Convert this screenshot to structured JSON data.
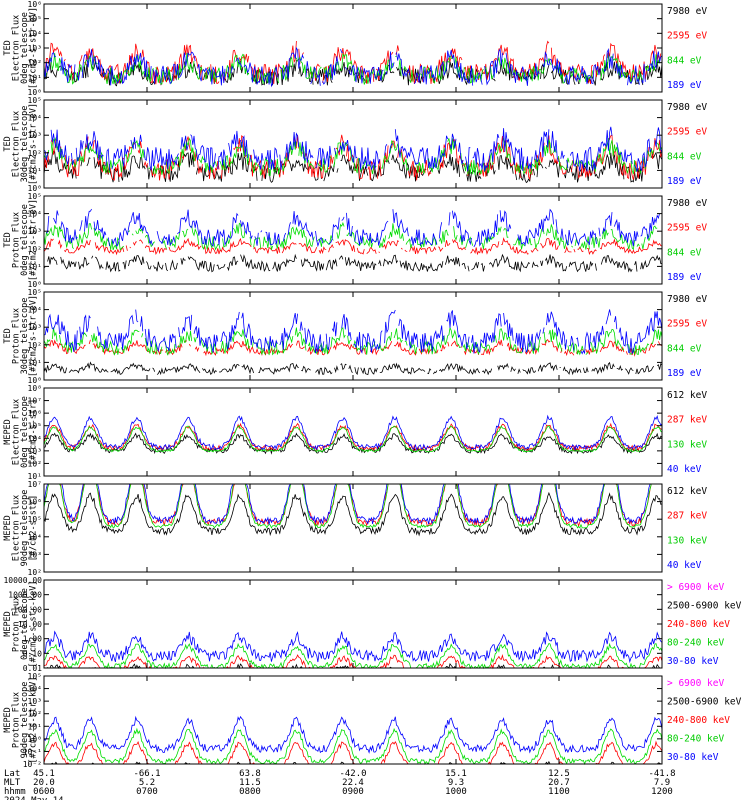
{
  "figure": {
    "date_label": "2024 May 14",
    "row_labels": [
      "Lat",
      "MLT",
      "hhmm"
    ],
    "time_ticks": [
      {
        "lat": "45.1",
        "mlt": "20.0",
        "hhmm": "0600"
      },
      {
        "lat": "-66.1",
        "mlt": "5.2",
        "hhmm": "0700"
      },
      {
        "lat": "63.8",
        "mlt": "11.5",
        "hhmm": "0800"
      },
      {
        "lat": "-42.0",
        "mlt": "22.4",
        "hhmm": "0900"
      },
      {
        "lat": "15.1",
        "mlt": "9.3",
        "hhmm": "1000"
      },
      {
        "lat": "12.5",
        "mlt": "20.7",
        "hhmm": "1100"
      },
      {
        "lat": "-41.8",
        "mlt": "7.9",
        "hhmm": "1200"
      }
    ]
  },
  "chart_data": [
    {
      "type": "line",
      "ylabel": [
        "TED",
        "Electron Flux",
        "0deg telescope",
        "[#/cm2-s-str-eV]"
      ],
      "ylog": true,
      "ylim": [
        1,
        1000000
      ],
      "yticks": [
        {
          "v": 1,
          "t": "10⁰"
        },
        {
          "v": 10,
          "t": "10¹"
        },
        {
          "v": 100,
          "t": "10²"
        },
        {
          "v": 1000,
          "t": "10³"
        },
        {
          "v": 10000,
          "t": "10⁴"
        },
        {
          "v": 100000,
          "t": "10⁵"
        },
        {
          "v": 1000000,
          "t": "10⁶"
        }
      ],
      "series": [
        {
          "name": "7980 eV",
          "color": "#000000",
          "level": 1.0,
          "spread": 0.6,
          "peak": 0.6,
          "seed": 11
        },
        {
          "name": "2595 eV",
          "color": "#ff0000",
          "level": 1.2,
          "spread": 0.7,
          "peak": 1.6,
          "seed": 12
        },
        {
          "name": "844 eV",
          "color": "#00dd00",
          "level": 1.1,
          "spread": 0.6,
          "peak": 1.0,
          "seed": 13
        },
        {
          "name": "189 eV",
          "color": "#0000ff",
          "level": 1.1,
          "spread": 0.7,
          "peak": 1.2,
          "seed": 14
        }
      ]
    },
    {
      "type": "line",
      "ylabel": [
        "TED",
        "Electron Flux",
        "30deg telescope",
        "[#/cm2-s-str-eV]"
      ],
      "ylog": true,
      "ylim": [
        1,
        100000
      ],
      "yticks": [
        {
          "v": 1,
          "t": "10⁰"
        },
        {
          "v": 10,
          "t": "10¹"
        },
        {
          "v": 100,
          "t": "10²"
        },
        {
          "v": 1000,
          "t": "10³"
        },
        {
          "v": 10000,
          "t": "10⁴"
        },
        {
          "v": 100000,
          "t": "10⁵"
        }
      ],
      "series": [
        {
          "name": "7980 eV",
          "color": "#000000",
          "level": 0.8,
          "spread": 0.5,
          "peak": 0.8,
          "seed": 21
        },
        {
          "name": "2595 eV",
          "color": "#ff0000",
          "level": 1.0,
          "spread": 0.6,
          "peak": 1.5,
          "seed": 22
        },
        {
          "name": "844 eV",
          "color": "#00dd00",
          "level": 1.2,
          "spread": 0.5,
          "peak": 1.2,
          "seed": 23
        },
        {
          "name": "189 eV",
          "color": "#0000ff",
          "level": 1.6,
          "spread": 0.7,
          "peak": 1.2,
          "seed": 24
        }
      ]
    },
    {
      "type": "line",
      "ylabel": [
        "TED",
        "Proton Flux",
        "0deg telescope",
        "[#/cm2-s-str-eV]"
      ],
      "ylog": true,
      "ylim": [
        1,
        100000
      ],
      "yticks": [
        {
          "v": 1,
          "t": "10⁰"
        },
        {
          "v": 10,
          "t": "10¹"
        },
        {
          "v": 100,
          "t": "10²"
        },
        {
          "v": 1000,
          "t": "10³"
        },
        {
          "v": 10000,
          "t": "10⁴"
        },
        {
          "v": 100000,
          "t": "10⁵"
        }
      ],
      "series": [
        {
          "name": "7980 eV",
          "color": "#000000",
          "level": 1.0,
          "spread": 0.3,
          "peak": 0.4,
          "seed": 31
        },
        {
          "name": "2595 eV",
          "color": "#ff0000",
          "level": 1.9,
          "spread": 0.2,
          "peak": 0.5,
          "seed": 32
        },
        {
          "name": "844 eV",
          "color": "#00dd00",
          "level": 2.3,
          "spread": 0.4,
          "peak": 0.8,
          "seed": 33
        },
        {
          "name": "189 eV",
          "color": "#0000ff",
          "level": 2.6,
          "spread": 0.5,
          "peak": 1.2,
          "seed": 34
        }
      ]
    },
    {
      "type": "line",
      "ylabel": [
        "TED",
        "Proton Flux",
        "30deg telescope",
        "[#/cm2-s-str-eV]"
      ],
      "ylog": true,
      "ylim": [
        1,
        100000
      ],
      "yticks": [
        {
          "v": 1,
          "t": "10⁰"
        },
        {
          "v": 10,
          "t": "10¹"
        },
        {
          "v": 100,
          "t": "10²"
        },
        {
          "v": 1000,
          "t": "10³"
        },
        {
          "v": 10000,
          "t": "10⁴"
        },
        {
          "v": 100000,
          "t": "10⁵"
        }
      ],
      "series": [
        {
          "name": "7980 eV",
          "color": "#000000",
          "level": 0.5,
          "spread": 0.2,
          "peak": 0.3,
          "seed": 41
        },
        {
          "name": "2595 eV",
          "color": "#ff0000",
          "level": 1.6,
          "spread": 0.2,
          "peak": 0.5,
          "seed": 42
        },
        {
          "name": "844 eV",
          "color": "#00dd00",
          "level": 1.8,
          "spread": 0.4,
          "peak": 0.8,
          "seed": 43
        },
        {
          "name": "189 eV",
          "color": "#0000ff",
          "level": 2.1,
          "spread": 0.6,
          "peak": 1.4,
          "seed": 44
        }
      ]
    },
    {
      "type": "line",
      "ylabel": [
        "MEPED",
        "Electron Flux",
        "0deg telescope",
        "[#/cm2-s-str]"
      ],
      "ylog": true,
      "ylim": [
        10,
        100000000
      ],
      "yticks": [
        {
          "v": 10,
          "t": "10¹"
        },
        {
          "v": 100,
          "t": "10²"
        },
        {
          "v": 1000,
          "t": "10³"
        },
        {
          "v": 10000,
          "t": "10⁴"
        },
        {
          "v": 100000,
          "t": "10⁵"
        },
        {
          "v": 1000000,
          "t": "10⁶"
        },
        {
          "v": 10000000,
          "t": "10⁷"
        },
        {
          "v": 100000000,
          "t": "10⁸"
        }
      ],
      "series": [
        {
          "name": "612 keV",
          "color": "#000000",
          "level": 2.0,
          "spread": 0.2,
          "peak": 1.2,
          "seed": 51
        },
        {
          "name": "287 keV",
          "color": "#ff0000",
          "level": 2.2,
          "spread": 0.2,
          "peak": 1.8,
          "seed": 52
        },
        {
          "name": "130 keV",
          "color": "#00dd00",
          "level": 2.0,
          "spread": 0.1,
          "peak": 1.9,
          "seed": 53
        },
        {
          "name": "40 keV",
          "color": "#0000ff",
          "level": 2.3,
          "spread": 0.2,
          "peak": 2.3,
          "seed": 54
        }
      ]
    },
    {
      "type": "line",
      "ylabel": [
        "MEPED",
        "Electron Flux",
        "90deg telescope",
        "[#/cm2-s-str]"
      ],
      "ylog": true,
      "ylim": [
        100,
        10000000
      ],
      "yticks": [
        {
          "v": 100,
          "t": "10²"
        },
        {
          "v": 1000,
          "t": "10³"
        },
        {
          "v": 10000,
          "t": "10⁴"
        },
        {
          "v": 100000,
          "t": "10⁵"
        },
        {
          "v": 1000000,
          "t": "10⁶"
        },
        {
          "v": 10000000,
          "t": "10⁷"
        }
      ],
      "series": [
        {
          "name": "612 keV",
          "color": "#000000",
          "level": 2.3,
          "spread": 0.2,
          "peak": 2.0,
          "seed": 61
        },
        {
          "name": "287 keV",
          "color": "#ff0000",
          "level": 2.8,
          "spread": 0.2,
          "peak": 3.4,
          "seed": 62
        },
        {
          "name": "130 keV",
          "color": "#00dd00",
          "level": 2.6,
          "spread": 0.1,
          "peak": 3.7,
          "seed": 63
        },
        {
          "name": "40 keV",
          "color": "#0000ff",
          "level": 2.9,
          "spread": 0.2,
          "peak": 3.9,
          "seed": 64
        }
      ]
    },
    {
      "type": "line",
      "ylabel": [
        "MEPED",
        "Proton Flux",
        "0deg telescope",
        "[#/cm2-s-str-keV]"
      ],
      "ylog": true,
      "ylim": [
        0.01,
        10000
      ],
      "yticks": [
        {
          "v": 0.01,
          "t": "0.01"
        },
        {
          "v": 0.1,
          "t": "0.10"
        },
        {
          "v": 1,
          "t": "1.00"
        },
        {
          "v": 10,
          "t": "10.00"
        },
        {
          "v": 100,
          "t": "100.00"
        },
        {
          "v": 1000,
          "t": "1000.00"
        },
        {
          "v": 10000,
          "t": "10000.00"
        }
      ],
      "series": [
        {
          "name": "> 6900 keV",
          "color": "#ff00ff",
          "level": -1.0,
          "spread": 0.2,
          "peak": 0.3,
          "seed": 71
        },
        {
          "name": "2500-6900 keV",
          "color": "#000000",
          "level": -0.6,
          "spread": 0.3,
          "peak": 0.6,
          "seed": 72
        },
        {
          "name": "240-800 keV",
          "color": "#ff0000",
          "level": -0.2,
          "spread": 0.2,
          "peak": 0.9,
          "seed": 73
        },
        {
          "name": "80-240 keV",
          "color": "#00dd00",
          "level": 0.1,
          "spread": 0.2,
          "peak": 1.4,
          "seed": 74
        },
        {
          "name": "30-80 keV",
          "color": "#0000ff",
          "level": 0.8,
          "spread": 0.4,
          "peak": 1.3,
          "seed": 75
        }
      ]
    },
    {
      "type": "line",
      "ylabel": [
        "MEPED",
        "Proton Flux",
        "90deg telescope",
        "[#/cm2-s-str-keV]"
      ],
      "ylog": true,
      "ylim": [
        0.01,
        100000
      ],
      "yticks": [
        {
          "v": 0.01,
          "t": "10⁻²"
        },
        {
          "v": 0.1,
          "t": "10⁻¹"
        },
        {
          "v": 1,
          "t": "10⁰"
        },
        {
          "v": 10,
          "t": "10¹"
        },
        {
          "v": 100,
          "t": "10²"
        },
        {
          "v": 1000,
          "t": "10³"
        },
        {
          "v": 10000,
          "t": "10⁴"
        },
        {
          "v": 100000,
          "t": "10⁵"
        }
      ],
      "series": [
        {
          "name": "> 6900 keV",
          "color": "#ff00ff",
          "level": -1.6,
          "spread": 0.2,
          "peak": 0.6,
          "seed": 81
        },
        {
          "name": "2500-6900 keV",
          "color": "#000000",
          "level": -1.0,
          "spread": 0.3,
          "peak": 0.9,
          "seed": 82
        },
        {
          "name": "240-800 keV",
          "color": "#ff0000",
          "level": -0.3,
          "spread": 0.2,
          "peak": 1.9,
          "seed": 83
        },
        {
          "name": "80-240 keV",
          "color": "#00dd00",
          "level": 0.2,
          "spread": 0.2,
          "peak": 2.4,
          "seed": 84
        },
        {
          "name": "30-80 keV",
          "color": "#0000ff",
          "level": 1.2,
          "spread": 0.3,
          "peak": 2.3,
          "seed": 85
        }
      ]
    }
  ],
  "peak_times_hours": [
    6.1,
    6.45,
    6.9,
    7.4,
    7.9,
    8.45,
    8.9,
    9.4,
    9.95,
    10.45,
    10.9,
    11.5,
    11.95
  ],
  "x_range_hours": [
    6.0,
    12.0
  ]
}
